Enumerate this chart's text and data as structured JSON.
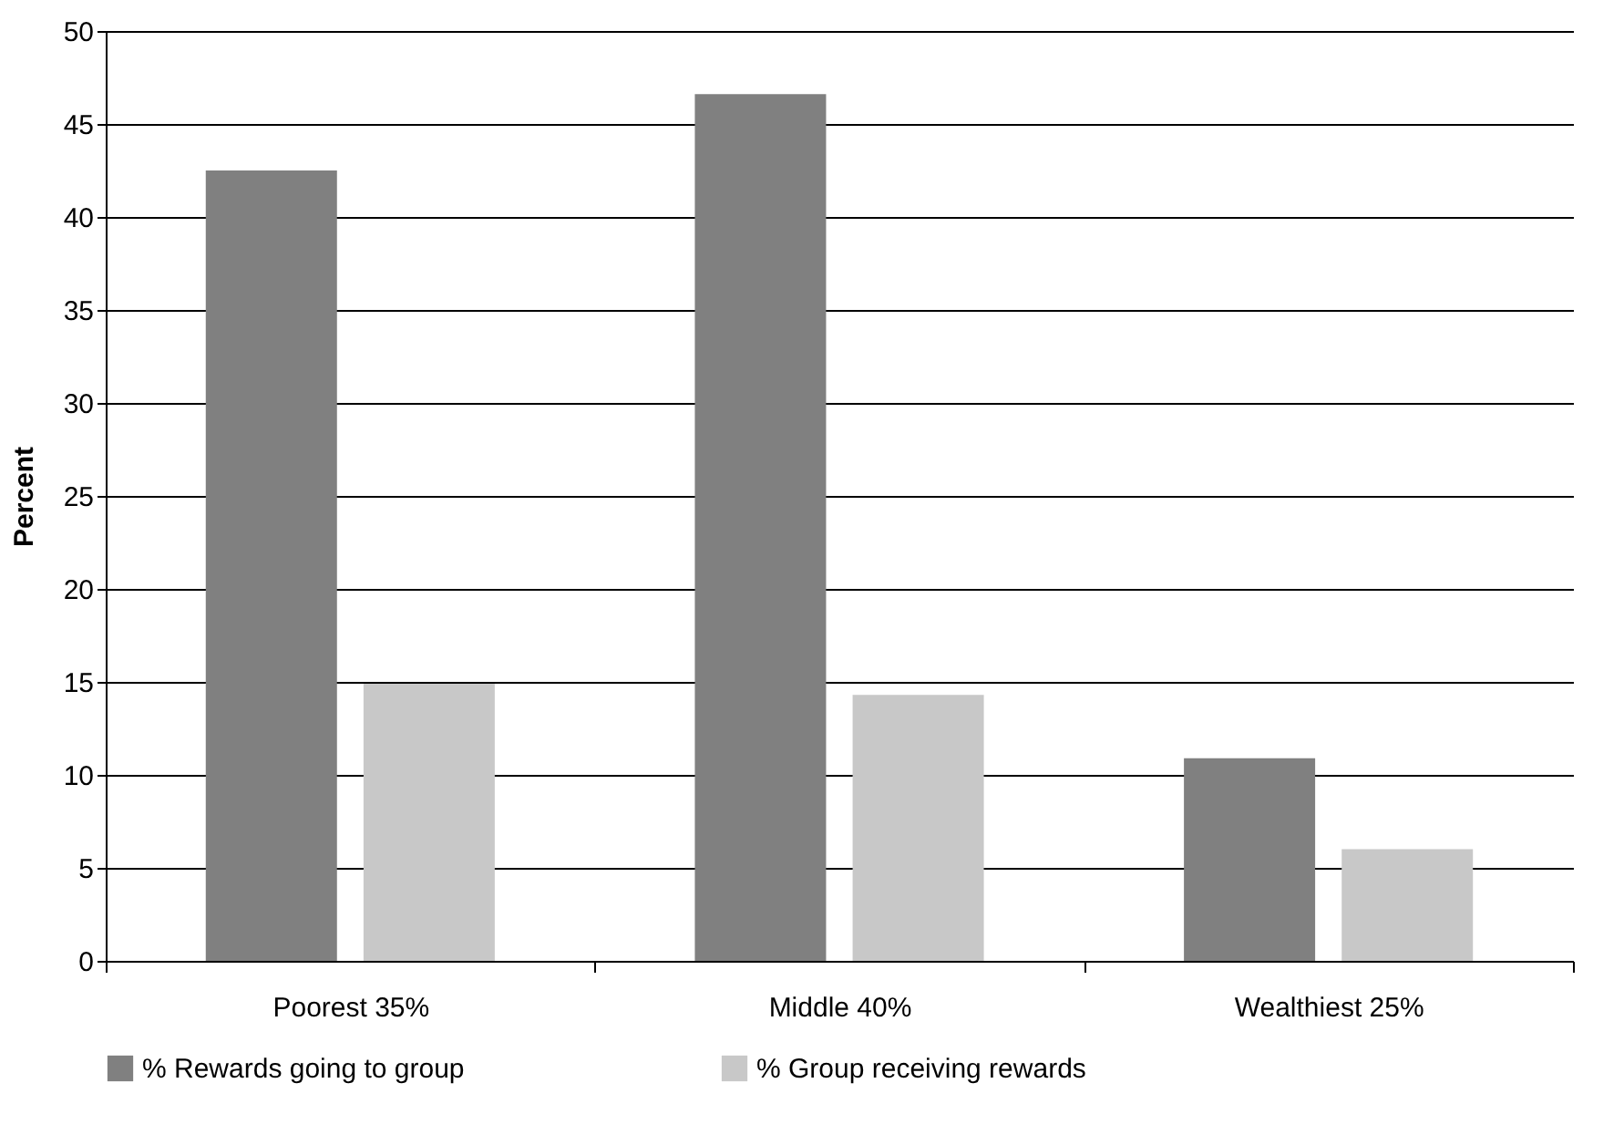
{
  "chart_data": {
    "type": "bar",
    "ylabel": "Percent",
    "categories": [
      "Poorest 35%",
      "Middle 40%",
      "Wealthiest 25%"
    ],
    "series": [
      {
        "name": "% Rewards going to group",
        "color": "#808080",
        "values": [
          42.5,
          46.6,
          10.9
        ]
      },
      {
        "name": "% Group receiving rewards",
        "color": "#c8c8c8",
        "values": [
          14.9,
          14.3,
          6.0
        ]
      }
    ],
    "ylim": [
      0,
      50
    ],
    "yticks": [
      0,
      5,
      10,
      15,
      20,
      25,
      30,
      35,
      40,
      45,
      50
    ],
    "grid": "y",
    "legend": "bottom"
  }
}
